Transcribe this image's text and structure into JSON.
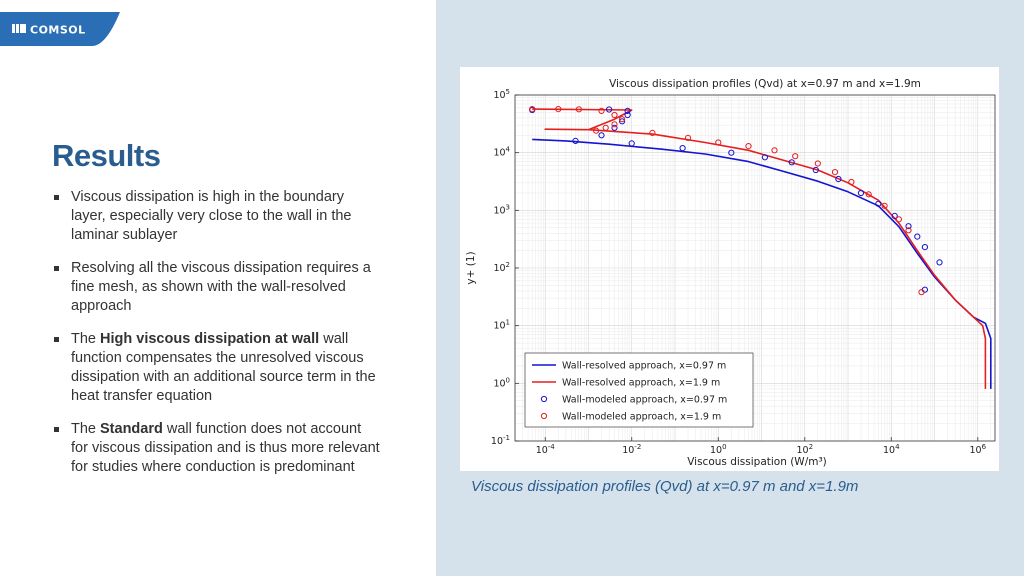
{
  "logo": {
    "text": "COMSOL"
  },
  "slide": {
    "title": "Results",
    "bullets": [
      {
        "parts": [
          {
            "text": "Viscous dissipation is high in the boundary layer, especially very close to the wall in the laminar sublayer",
            "bold": false
          }
        ]
      },
      {
        "parts": [
          {
            "text": "Resolving all the viscous dissipation requires a fine mesh, as shown with the wall-resolved approach",
            "bold": false
          }
        ]
      },
      {
        "parts": [
          {
            "text": "The ",
            "bold": false
          },
          {
            "text": "High viscous dissipation at wall",
            "bold": true
          },
          {
            "text": " wall function compensates the unresolved viscous dissipation with an additional source term in the heat transfer equation",
            "bold": false
          }
        ]
      },
      {
        "parts": [
          {
            "text": "The ",
            "bold": false
          },
          {
            "text": "Standard",
            "bold": true
          },
          {
            "text": " wall function does not account for viscous dissipation and is thus more relevant for studies where conduction is predominant",
            "bold": false
          }
        ]
      }
    ],
    "caption": "Viscous dissipation profiles (Qvd) at x=0.97 m and x=1.9m"
  },
  "colors": {
    "accent": "#2a5d8f",
    "right_panel": "#d5e2ec",
    "blue_series": "#1414d2",
    "red_series": "#e61e1e"
  },
  "chart_data": {
    "type": "line",
    "title": "Viscous dissipation profiles (Qvd) at x=0.97 m and x=1.9m",
    "xlabel": "Viscous dissipation (W/m³)",
    "ylabel": "y+ (1)",
    "xscale": "log",
    "yscale": "log",
    "xlim": [
      2e-05,
      2500000.0
    ],
    "ylim": [
      0.1,
      100000
    ],
    "x_ticks": [
      {
        "value": 0.0001,
        "base": "10",
        "exp": "-4"
      },
      {
        "value": 0.01,
        "base": "10",
        "exp": "-2"
      },
      {
        "value": 1,
        "base": "10",
        "exp": "0"
      },
      {
        "value": 100,
        "base": "10",
        "exp": "2"
      },
      {
        "value": 10000,
        "base": "10",
        "exp": "4"
      },
      {
        "value": 1000000,
        "base": "10",
        "exp": "6"
      }
    ],
    "y_ticks": [
      {
        "value": 0.1,
        "base": "10",
        "exp": "-1"
      },
      {
        "value": 1,
        "base": "10",
        "exp": "0"
      },
      {
        "value": 10,
        "base": "10",
        "exp": "1"
      },
      {
        "value": 100,
        "base": "10",
        "exp": "2"
      },
      {
        "value": 1000,
        "base": "10",
        "exp": "3"
      },
      {
        "value": 10000,
        "base": "10",
        "exp": "4"
      },
      {
        "value": 100000,
        "base": "10",
        "exp": "5"
      }
    ],
    "grid": true,
    "legend_position": "bottom-left",
    "series": [
      {
        "name": "Wall-resolved approach, x=0.97 m",
        "style": "line",
        "color": "#1414d2",
        "points": [
          [
            5e-05,
            17000
          ],
          [
            0.0003,
            16000
          ],
          [
            0.003,
            14000
          ],
          [
            0.05,
            11500
          ],
          [
            0.5,
            9500
          ],
          [
            5,
            7000
          ],
          [
            30,
            4800
          ],
          [
            200,
            3200
          ],
          [
            1000,
            2100
          ],
          [
            5000,
            1200
          ],
          [
            15000,
            520
          ],
          [
            40000,
            180
          ],
          [
            100000,
            70
          ],
          [
            300000,
            28
          ],
          [
            800000,
            14
          ],
          [
            1500000,
            11
          ],
          [
            2000000,
            6
          ],
          [
            2000000,
            0.8
          ]
        ]
      },
      {
        "name": "Wall-resolved approach, x=1.9 m",
        "style": "line",
        "color": "#e61e1e",
        "points": [
          [
            5e-05,
            57000
          ],
          [
            0.01,
            55000
          ],
          [
            0.004,
            38000
          ],
          [
            0.001,
            25000
          ],
          [
            0.0001,
            25500
          ],
          [
            0.001,
            25000
          ],
          [
            0.03,
            21000
          ],
          [
            0.5,
            15000
          ],
          [
            5,
            11000
          ],
          [
            30,
            7500
          ],
          [
            200,
            5000
          ],
          [
            1000,
            3000
          ],
          [
            5000,
            1500
          ],
          [
            15000,
            600
          ],
          [
            40000,
            200
          ],
          [
            100000,
            75
          ],
          [
            300000,
            28
          ],
          [
            800000,
            14
          ],
          [
            1300000,
            10
          ],
          [
            1500000,
            6
          ],
          [
            1500000,
            0.8
          ]
        ]
      },
      {
        "name": "Wall-modeled approach, x=0.97 m",
        "style": "markers",
        "color": "#1414d2",
        "points": [
          [
            5e-05,
            55000
          ],
          [
            0.003,
            56000
          ],
          [
            0.008,
            53000
          ],
          [
            0.008,
            45000
          ],
          [
            0.006,
            35000
          ],
          [
            0.004,
            27000
          ],
          [
            0.002,
            20000
          ],
          [
            0.0005,
            16000
          ],
          [
            0.01,
            14500
          ],
          [
            0.15,
            12000
          ],
          [
            2,
            10000
          ],
          [
            12,
            8300
          ],
          [
            50,
            6800
          ],
          [
            180,
            5000
          ],
          [
            600,
            3500
          ],
          [
            2000,
            2000
          ],
          [
            5000,
            1300
          ],
          [
            12000,
            800
          ],
          [
            25000,
            530
          ],
          [
            40000,
            350
          ],
          [
            60000,
            230
          ],
          [
            130000,
            125
          ],
          [
            60000,
            42
          ]
        ]
      },
      {
        "name": "Wall-modeled approach, x=1.9 m",
        "style": "markers",
        "color": "#e61e1e",
        "points": [
          [
            5e-05,
            57000
          ],
          [
            0.0002,
            57000
          ],
          [
            0.0006,
            56500
          ],
          [
            0.002,
            53000
          ],
          [
            0.004,
            45000
          ],
          [
            0.006,
            38000
          ],
          [
            0.004,
            31000
          ],
          [
            0.0025,
            27000
          ],
          [
            0.0015,
            24000
          ],
          [
            0.03,
            22000
          ],
          [
            0.2,
            18000
          ],
          [
            1,
            15000
          ],
          [
            5,
            13000
          ],
          [
            20,
            11000
          ],
          [
            60,
            8700
          ],
          [
            200,
            6500
          ],
          [
            500,
            4600
          ],
          [
            1200,
            3100
          ],
          [
            3000,
            1900
          ],
          [
            7000,
            1200
          ],
          [
            15000,
            700
          ],
          [
            25000,
            450
          ],
          [
            50000,
            38
          ]
        ]
      }
    ]
  }
}
